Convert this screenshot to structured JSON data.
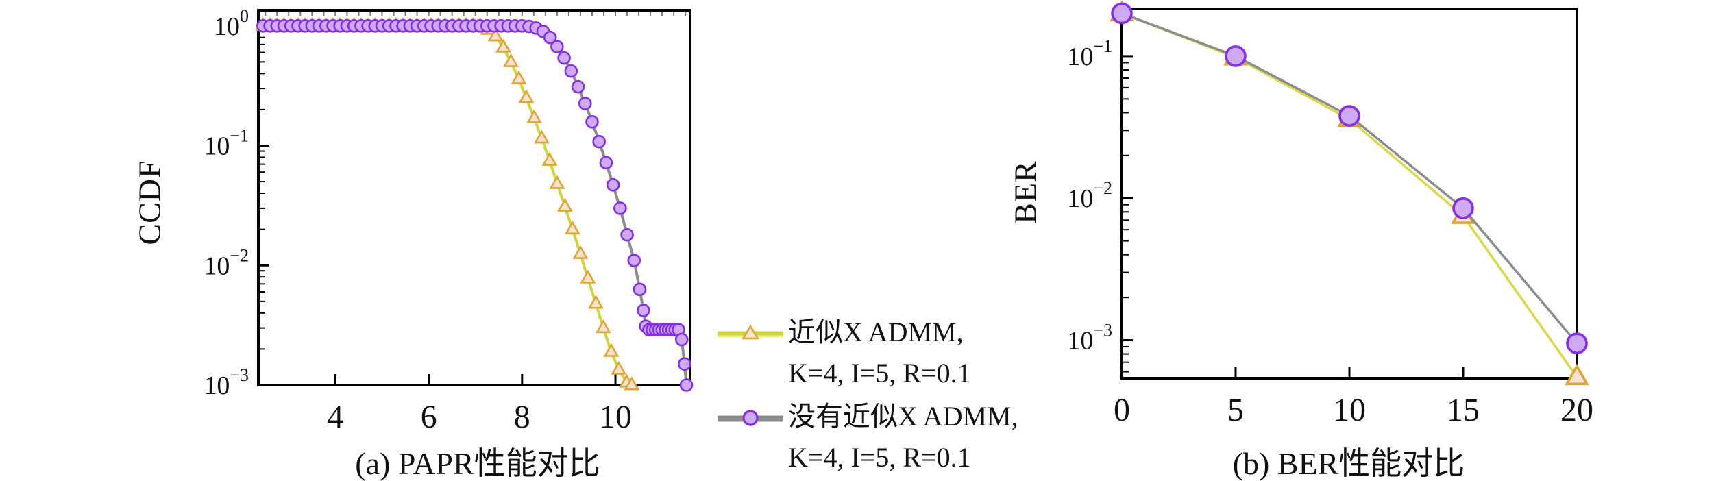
{
  "figure": {
    "background": "#ffffff",
    "axis_color": "#000000"
  },
  "legend": {
    "entries": [
      {
        "label_line1": "近似X ADMM,",
        "label_line2": "K=4, I=5, R=0.1",
        "marker": "triangle-up",
        "line_color": "#ccd63e",
        "line_color2": "#eff077",
        "marker_edge": "#dfa439",
        "marker_fill": "#f6e3cf"
      },
      {
        "label_line1": "没有近似X ADMM,",
        "label_line2": "K=4, I=5, R=0.1",
        "marker": "circle",
        "line_color": "#8c8c8c",
        "line_color2": "#8c8c8c",
        "marker_edge": "#8430e0",
        "marker_fill": "#cfaaf4"
      }
    ]
  },
  "chart_data": [
    {
      "id": "papr",
      "type": "line",
      "caption": "(a) PAPR性能对比",
      "ylabel": "CCDF",
      "x_axis": {
        "lim": [
          2.35,
          11.6
        ],
        "ticks": [
          4,
          6,
          8,
          10
        ],
        "minor_step_top": 0.25
      },
      "y_axis": {
        "scale": "log",
        "lim": [
          0.001,
          1.35
        ],
        "tick_exponents": [
          0,
          -1,
          -2,
          -3
        ]
      },
      "series": [
        {
          "name": "近似X ADMM, K=4, I=5, R=0.1",
          "marker": "triangle-up",
          "line_color": "#ccd63e",
          "marker_edge": "#dfa439",
          "marker_fill": "#f6e3cf",
          "points": [
            [
              2.45,
              1
            ],
            [
              2.6,
              1
            ],
            [
              2.75,
              1
            ],
            [
              2.9,
              1
            ],
            [
              3.05,
              1
            ],
            [
              3.2,
              1
            ],
            [
              3.35,
              1
            ],
            [
              3.5,
              1
            ],
            [
              3.65,
              1
            ],
            [
              3.8,
              1
            ],
            [
              3.95,
              1
            ],
            [
              4.1,
              1
            ],
            [
              4.25,
              1
            ],
            [
              4.4,
              1
            ],
            [
              4.55,
              1
            ],
            [
              4.7,
              1
            ],
            [
              4.85,
              1
            ],
            [
              5,
              1
            ],
            [
              5.15,
              1
            ],
            [
              5.3,
              1
            ],
            [
              5.45,
              1
            ],
            [
              5.6,
              1
            ],
            [
              5.75,
              1
            ],
            [
              5.9,
              1
            ],
            [
              6.05,
              1
            ],
            [
              6.2,
              1
            ],
            [
              6.35,
              1
            ],
            [
              6.5,
              1
            ],
            [
              6.65,
              1
            ],
            [
              6.8,
              1
            ],
            [
              6.95,
              1
            ],
            [
              7.1,
              0.99
            ],
            [
              7.27,
              0.93
            ],
            [
              7.43,
              0.82
            ],
            [
              7.6,
              0.66
            ],
            [
              7.76,
              0.5
            ],
            [
              7.93,
              0.36
            ],
            [
              8.09,
              0.25
            ],
            [
              8.26,
              0.17
            ],
            [
              8.42,
              0.115
            ],
            [
              8.59,
              0.075
            ],
            [
              8.75,
              0.048
            ],
            [
              8.92,
              0.031
            ],
            [
              9.08,
              0.02
            ],
            [
              9.25,
              0.0125
            ],
            [
              9.41,
              0.0078
            ],
            [
              9.58,
              0.0048
            ],
            [
              9.74,
              0.003
            ],
            [
              9.91,
              0.0019
            ],
            [
              10.07,
              0.00135
            ],
            [
              10.24,
              0.00105
            ],
            [
              10.35,
              0.001
            ]
          ]
        },
        {
          "name": "没有近似X ADMM, K=4, I=5, R=0.1",
          "marker": "circle",
          "line_color": "#8c8c8c",
          "marker_edge": "#8430e0",
          "marker_fill": "#cfaaf4",
          "points": [
            [
              2.45,
              1
            ],
            [
              2.6,
              1
            ],
            [
              2.75,
              1
            ],
            [
              2.9,
              1
            ],
            [
              3.05,
              1
            ],
            [
              3.2,
              1
            ],
            [
              3.35,
              1
            ],
            [
              3.5,
              1
            ],
            [
              3.65,
              1
            ],
            [
              3.8,
              1
            ],
            [
              3.95,
              1
            ],
            [
              4.1,
              1
            ],
            [
              4.25,
              1
            ],
            [
              4.4,
              1
            ],
            [
              4.55,
              1
            ],
            [
              4.7,
              1
            ],
            [
              4.85,
              1
            ],
            [
              5,
              1
            ],
            [
              5.15,
              1
            ],
            [
              5.3,
              1
            ],
            [
              5.45,
              1
            ],
            [
              5.6,
              1
            ],
            [
              5.75,
              1
            ],
            [
              5.9,
              1
            ],
            [
              6.05,
              1
            ],
            [
              6.2,
              1
            ],
            [
              6.35,
              1
            ],
            [
              6.5,
              1
            ],
            [
              6.65,
              1
            ],
            [
              6.8,
              1
            ],
            [
              6.95,
              1
            ],
            [
              7.1,
              1
            ],
            [
              7.25,
              1
            ],
            [
              7.4,
              1
            ],
            [
              7.55,
              1
            ],
            [
              7.7,
              1
            ],
            [
              7.85,
              1
            ],
            [
              8,
              1
            ],
            [
              8.15,
              0.99
            ],
            [
              8.3,
              0.96
            ],
            [
              8.45,
              0.9
            ],
            [
              8.6,
              0.8
            ],
            [
              8.75,
              0.67
            ],
            [
              8.9,
              0.54
            ],
            [
              9.05,
              0.42
            ],
            [
              9.2,
              0.31
            ],
            [
              9.35,
              0.225
            ],
            [
              9.5,
              0.158
            ],
            [
              9.65,
              0.108
            ],
            [
              9.8,
              0.072
            ],
            [
              9.95,
              0.047
            ],
            [
              10.1,
              0.03
            ],
            [
              10.25,
              0.018
            ],
            [
              10.4,
              0.011
            ],
            [
              10.52,
              0.0063
            ],
            [
              10.6,
              0.0042
            ],
            [
              10.65,
              0.0031
            ],
            [
              10.72,
              0.0029
            ],
            [
              10.79,
              0.0029
            ],
            [
              10.86,
              0.0029
            ],
            [
              10.93,
              0.0029
            ],
            [
              11,
              0.0029
            ],
            [
              11.07,
              0.0029
            ],
            [
              11.14,
              0.0029
            ],
            [
              11.21,
              0.0029
            ],
            [
              11.28,
              0.0029
            ],
            [
              11.35,
              0.0029
            ],
            [
              11.42,
              0.0024
            ],
            [
              11.48,
              0.0015
            ],
            [
              11.52,
              0.001
            ]
          ]
        }
      ]
    },
    {
      "id": "ber",
      "type": "line",
      "caption": "(b) BER性能对比",
      "ylabel": "BER",
      "x_axis": {
        "lim": [
          0,
          20
        ],
        "ticks": [
          0,
          5,
          10,
          15,
          20
        ]
      },
      "y_axis": {
        "scale": "log",
        "lim": [
          0.00054,
          0.215
        ],
        "tick_exponents": [
          -1,
          -2,
          -3
        ]
      },
      "series": [
        {
          "name": "近似X ADMM, K=4, I=5, R=0.1",
          "marker": "triangle-up",
          "line_color": "#d8d84e",
          "marker_edge": "#dfa439",
          "marker_fill": "#f6e3cf",
          "points": [
            [
              0,
              0.2
            ],
            [
              5,
              0.098
            ],
            [
              10,
              0.036
            ],
            [
              15,
              0.0075
            ],
            [
              20,
              0.00055
            ]
          ]
        },
        {
          "name": "没有近似X ADMM, K=4, I=5, R=0.1",
          "marker": "circle",
          "line_color": "#8c8c8c",
          "marker_edge": "#8430e0",
          "marker_fill": "#cfaaf4",
          "points": [
            [
              0,
              0.2
            ],
            [
              5,
              0.1
            ],
            [
              10,
              0.038
            ],
            [
              15,
              0.0085
            ],
            [
              20,
              0.00095
            ]
          ]
        }
      ]
    }
  ]
}
